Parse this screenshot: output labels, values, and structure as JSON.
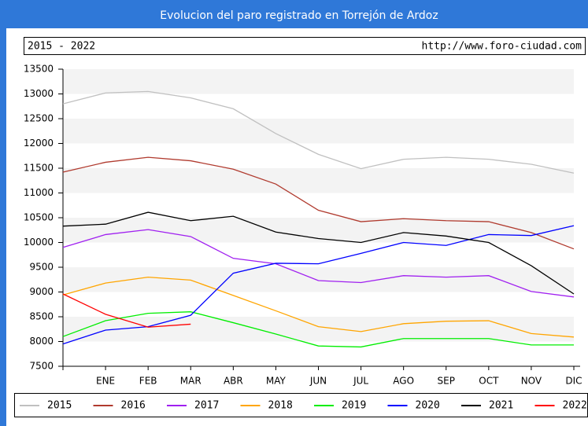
{
  "chart_data": {
    "type": "line",
    "title": "Evolucion del paro registrado en Torrejón de Ardoz",
    "subtitle": "2015 - 2022",
    "source": "http://www.foro-ciudad.com",
    "categories": [
      null,
      "ENE",
      "FEB",
      "MAR",
      "ABR",
      "MAY",
      "JUN",
      "JUL",
      "AGO",
      "SEP",
      "OCT",
      "NOV",
      "DIC"
    ],
    "ylim": [
      7500,
      13500
    ],
    "yticks": [
      7500,
      8000,
      8500,
      9000,
      9500,
      10000,
      10500,
      11000,
      11500,
      12000,
      12500,
      13000,
      13500
    ],
    "grid": true,
    "legend": "bottom",
    "series": [
      {
        "name": "2015",
        "color": "#c0c0c0",
        "values": [
          12800,
          13020,
          13050,
          12920,
          12700,
          12200,
          11780,
          11490,
          11680,
          11720,
          11680,
          11580,
          11400
        ]
      },
      {
        "name": "2016",
        "color": "#b03a2e",
        "values": [
          11420,
          11620,
          11720,
          11650,
          11480,
          11180,
          10650,
          10420,
          10480,
          10440,
          10420,
          10200,
          9870
        ]
      },
      {
        "name": "2017",
        "color": "#a020f0",
        "values": [
          9900,
          10160,
          10260,
          10120,
          9680,
          9570,
          9230,
          9190,
          9330,
          9300,
          9330,
          9010,
          8900
        ]
      },
      {
        "name": "2018",
        "color": "#ffa500",
        "values": [
          8940,
          9180,
          9300,
          9240,
          8930,
          8620,
          8300,
          8200,
          8360,
          8410,
          8420,
          8160,
          8090
        ]
      },
      {
        "name": "2019",
        "color": "#00ee00",
        "values": [
          8100,
          8420,
          8570,
          8600,
          8380,
          8150,
          7910,
          7890,
          8060,
          8060,
          8060,
          7930,
          7930
        ]
      },
      {
        "name": "2020",
        "color": "#0000ff",
        "values": [
          7950,
          8230,
          8300,
          8530,
          9380,
          9580,
          9570,
          9780,
          10000,
          9940,
          10160,
          10140,
          10340
        ]
      },
      {
        "name": "2021",
        "color": "#000000",
        "values": [
          10330,
          10370,
          10610,
          10440,
          10530,
          10210,
          10080,
          10000,
          10200,
          10130,
          10000,
          9530,
          8960
        ]
      },
      {
        "name": "2022",
        "color": "#ff0000",
        "values": [
          8960,
          8550,
          8290,
          8350,
          null,
          null,
          null,
          null,
          null,
          null,
          null,
          null,
          null
        ]
      }
    ]
  }
}
